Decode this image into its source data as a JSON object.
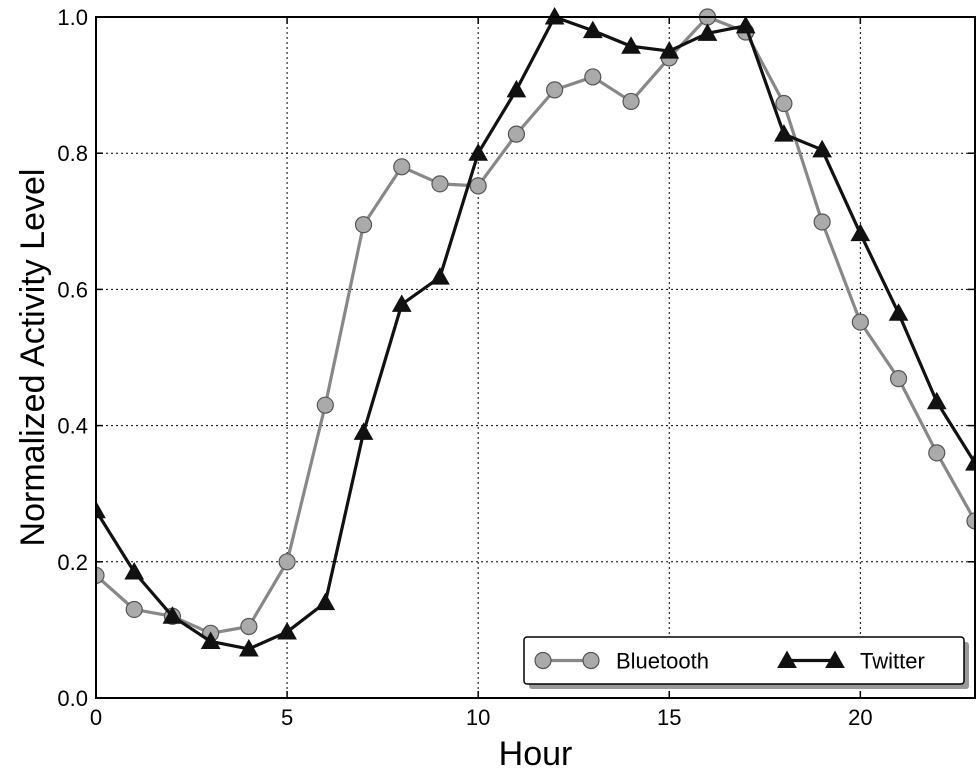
{
  "chart_data": {
    "type": "line",
    "title": "",
    "xlabel": "Hour",
    "ylabel": "Normalized Activity Level",
    "xlim": [
      0,
      23
    ],
    "ylim": [
      0.0,
      1.0
    ],
    "xticks": [
      0,
      5,
      10,
      15,
      20
    ],
    "xtick_labels": [
      "0",
      "5",
      "10",
      "15",
      "20"
    ],
    "yticks": [
      0.0,
      0.2,
      0.4,
      0.6,
      0.8,
      1.0
    ],
    "ytick_labels": [
      "0.0",
      "0.2",
      "0.4",
      "0.6",
      "0.8",
      "1.0"
    ],
    "grid": true,
    "legend_position": "bottom-right",
    "x": [
      0,
      1,
      2,
      3,
      4,
      5,
      6,
      7,
      8,
      9,
      10,
      11,
      12,
      13,
      14,
      15,
      16,
      17,
      18,
      19,
      20,
      21,
      22,
      23
    ],
    "series": [
      {
        "name": "Bluetooth",
        "marker": "circle",
        "line_color": "#888888",
        "marker_color": "#aaaaaa",
        "values": [
          0.18,
          0.13,
          0.12,
          0.095,
          0.105,
          0.2,
          0.43,
          0.695,
          0.78,
          0.755,
          0.752,
          0.828,
          0.893,
          0.912,
          0.876,
          0.94,
          1.0,
          0.978,
          0.873,
          0.699,
          0.552,
          0.469,
          0.36,
          0.26
        ]
      },
      {
        "name": "Twitter",
        "marker": "triangle",
        "line_color": "#111111",
        "marker_color": "#111111",
        "values": [
          0.275,
          0.185,
          0.12,
          0.083,
          0.072,
          0.097,
          0.14,
          0.39,
          0.578,
          0.618,
          0.8,
          0.893,
          1.0,
          0.98,
          0.957,
          0.95,
          0.976,
          0.987,
          0.828,
          0.805,
          0.682,
          0.565,
          0.435,
          0.345
        ]
      }
    ]
  }
}
